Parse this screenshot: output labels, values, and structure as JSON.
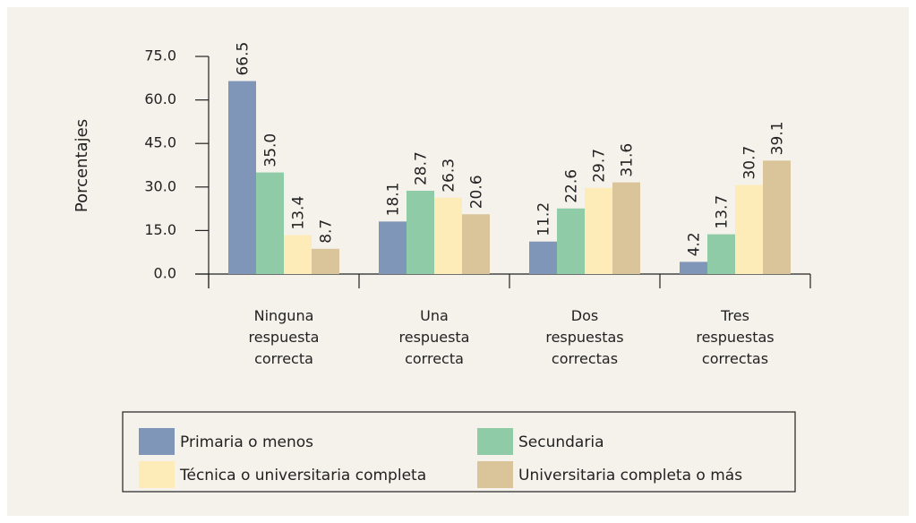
{
  "chart_data": {
    "type": "bar",
    "y_label": "Porcentajes",
    "categories": [
      "Ninguna respuesta correcta",
      "Una respuesta correcta",
      "Dos respuestas correctas",
      "Tres respuestas correctas"
    ],
    "series": [
      {
        "name": "Primaria o menos",
        "color": "#8096b9",
        "values": [
          66.5,
          18.1,
          11.2,
          4.2
        ],
        "value_labels": [
          "66.5",
          "18.1",
          "11.2",
          "4.2"
        ]
      },
      {
        "name": "Secundaria",
        "color": "#90cba7",
        "values": [
          35,
          28.7,
          22.6,
          13.7
        ],
        "value_labels": [
          "35.0",
          "28.7",
          "22.6",
          "13.7"
        ]
      },
      {
        "name": "Técnica o universitaria completa",
        "color": "#fdebb8",
        "values": [
          13.4,
          26.3,
          29.7,
          30.7
        ],
        "value_labels": [
          "13.4",
          "26.3",
          "29.7",
          "30.7"
        ]
      },
      {
        "name": "Universitaria completa o más",
        "color": "#dac59b",
        "values": [
          8.7,
          20.6,
          31.6,
          39.1
        ],
        "value_labels": [
          "8.7",
          "20.6",
          "31.6",
          "39.1"
        ]
      }
    ],
    "ylim": [
      0,
      75
    ],
    "yticks": [
      {
        "value": 0,
        "label": "0.0"
      },
      {
        "value": 15,
        "label": "15.0"
      },
      {
        "value": 30,
        "label": "30.0"
      },
      {
        "value": 45,
        "label": "45.0"
      },
      {
        "value": 60,
        "label": "60.0"
      },
      {
        "value": 75,
        "label": "75.0"
      }
    ],
    "grid": false
  }
}
